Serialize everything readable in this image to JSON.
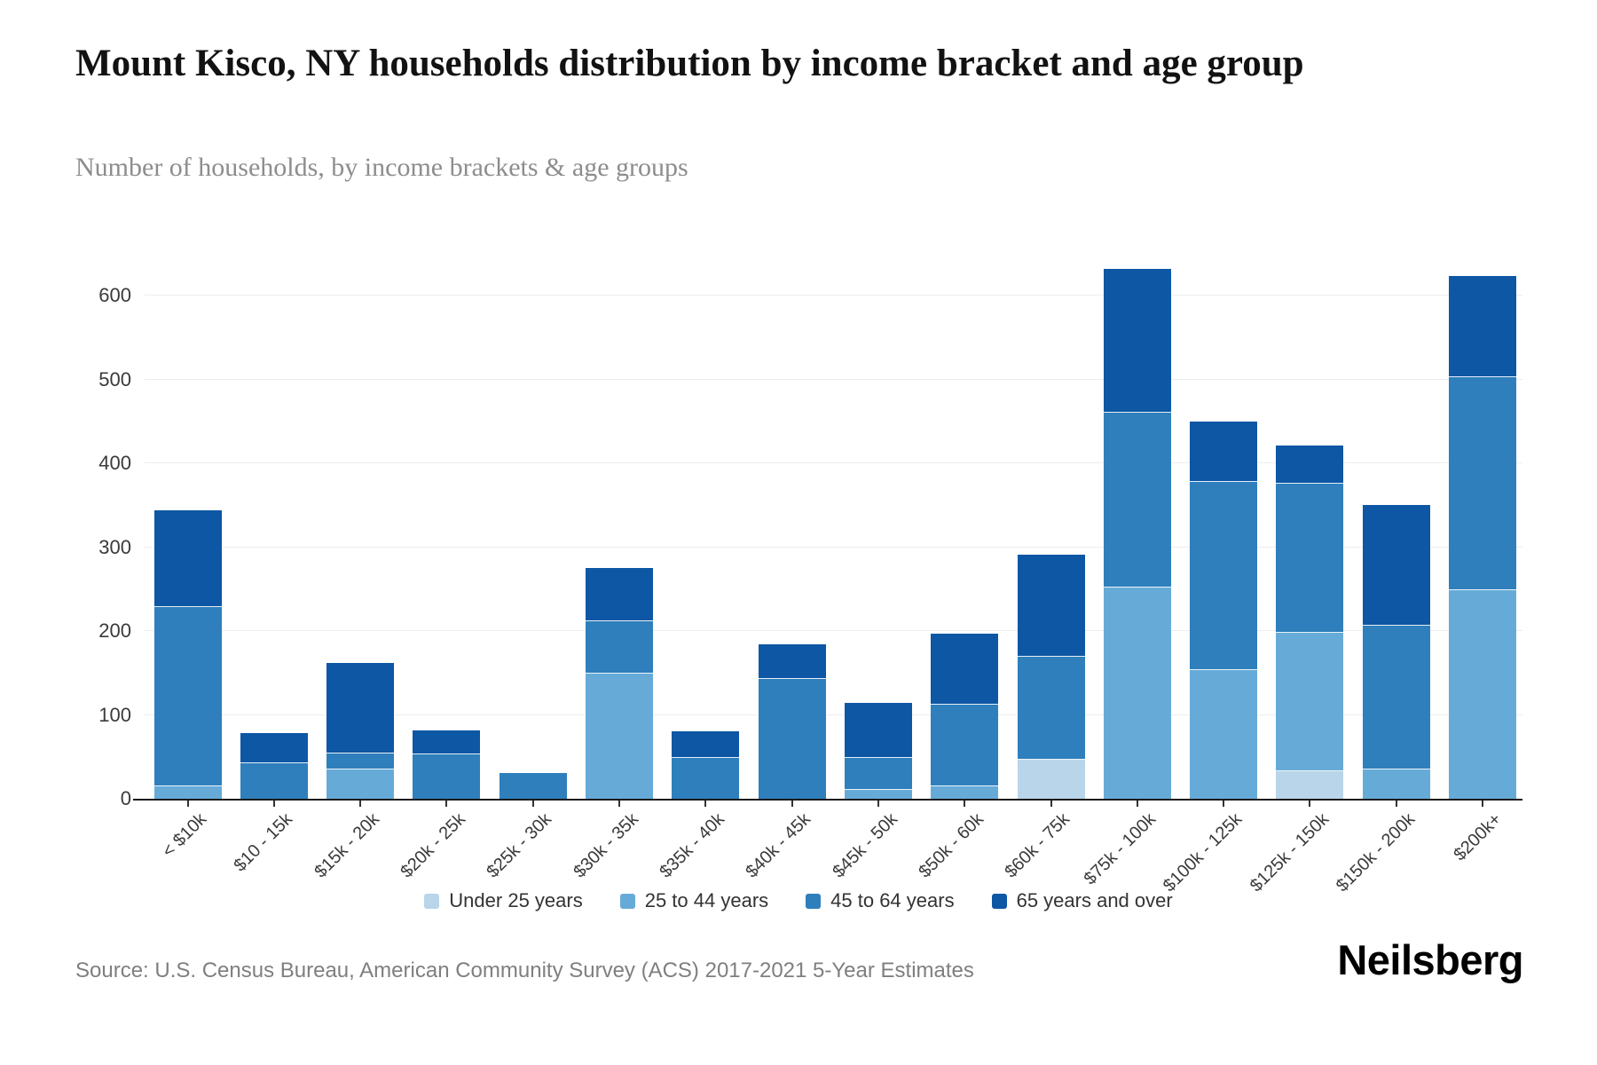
{
  "header": {
    "title": "Mount Kisco, NY households distribution by income bracket and age group",
    "subtitle": "Number of households, by income brackets & age groups"
  },
  "footer": {
    "source": "Source: U.S. Census Bureau, American Community Survey (ACS) 2017-2021 5-Year Estimates",
    "logo": "Neilsberg"
  },
  "colors": {
    "under_25": "#b9d5e9",
    "age_25_44": "#66abd8",
    "age_45_64": "#2e7fbc",
    "age_65_plus": "#0d57a5",
    "axis_line": "#1a1a1a",
    "grid": "#ededed",
    "tick_label": "#3a3a3a"
  },
  "chart_data": {
    "type": "bar",
    "stacked": true,
    "title": "Mount Kisco, NY households distribution by income bracket and age group",
    "subtitle": "Number of households, by income brackets & age groups",
    "xlabel": "",
    "ylabel": "Number of households",
    "ylim": [
      0,
      685
    ],
    "yticks": [
      0,
      100,
      200,
      300,
      400,
      500,
      600
    ],
    "grid": true,
    "legend_position": "bottom",
    "categories": [
      "< $10k",
      "$10 - 15k",
      "$15k - 20k",
      "$20k - 25k",
      "$25k - 30k",
      "$30k - 35k",
      "$35k - 40k",
      "$40k - 45k",
      "$45k - 50k",
      "$50k - 60k",
      "$60k - 75k",
      "$75k - 100k",
      "$100k - 125k",
      "$125k - 150k",
      "$150k - 200k",
      "$200k+"
    ],
    "series": [
      {
        "name": "Under 25 years",
        "color": "#b9d5e9",
        "values": [
          0,
          0,
          0,
          0,
          0,
          0,
          0,
          0,
          0,
          0,
          47,
          0,
          0,
          33,
          0,
          0
        ]
      },
      {
        "name": "25 to 44 years",
        "color": "#66abd8",
        "values": [
          15,
          0,
          35,
          0,
          0,
          149,
          0,
          0,
          11,
          15,
          0,
          252,
          154,
          165,
          35,
          249
        ]
      },
      {
        "name": "45 to 64 years",
        "color": "#2e7fbc",
        "values": [
          214,
          42,
          19,
          53,
          31,
          63,
          49,
          143,
          38,
          97,
          122,
          209,
          224,
          178,
          171,
          254
        ]
      },
      {
        "name": "65 years and over",
        "color": "#0d57a5",
        "values": [
          115,
          36,
          108,
          29,
          0,
          63,
          31,
          41,
          65,
          85,
          122,
          171,
          72,
          45,
          144,
          121
        ]
      }
    ],
    "totals": [
      344,
      78,
      162,
      82,
      31,
      275,
      80,
      184,
      114,
      197,
      291,
      632,
      450,
      421,
      350,
      624
    ]
  }
}
